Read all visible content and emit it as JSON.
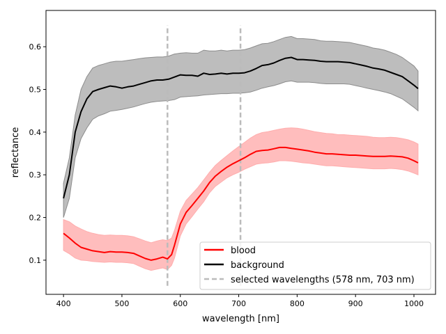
{
  "chart_data": {
    "type": "line",
    "title": "",
    "xlabel": "wavelength [nm]",
    "ylabel": "reflectance",
    "xlim": [
      370,
      1037
    ],
    "ylim": [
      0.02,
      0.685
    ],
    "xticks": [
      400,
      500,
      600,
      700,
      800,
      900,
      1000
    ],
    "yticks": [
      0.1,
      0.2,
      0.3,
      0.4,
      0.5,
      0.6
    ],
    "grid": false,
    "legend_position": "lower-right",
    "series": [
      {
        "name": "blood",
        "color": "#ff0000",
        "band_color": "#ffbdbd",
        "x": [
          400,
          410,
          420,
          430,
          440,
          450,
          460,
          470,
          480,
          490,
          500,
          510,
          520,
          530,
          540,
          550,
          560,
          570,
          578,
          585,
          590,
          600,
          610,
          620,
          630,
          640,
          650,
          660,
          670,
          680,
          690,
          700,
          710,
          720,
          730,
          740,
          750,
          760,
          770,
          780,
          790,
          800,
          810,
          820,
          830,
          840,
          850,
          860,
          870,
          880,
          890,
          900,
          910,
          920,
          930,
          940,
          950,
          960,
          970,
          980,
          990,
          1000,
          1007
        ],
        "mean": [
          0.163,
          0.152,
          0.14,
          0.13,
          0.126,
          0.122,
          0.12,
          0.118,
          0.12,
          0.119,
          0.119,
          0.118,
          0.116,
          0.11,
          0.104,
          0.1,
          0.103,
          0.107,
          0.103,
          0.113,
          0.135,
          0.185,
          0.212,
          0.228,
          0.245,
          0.262,
          0.282,
          0.297,
          0.308,
          0.318,
          0.326,
          0.333,
          0.34,
          0.348,
          0.355,
          0.357,
          0.358,
          0.361,
          0.364,
          0.364,
          0.362,
          0.36,
          0.358,
          0.356,
          0.353,
          0.351,
          0.349,
          0.349,
          0.348,
          0.347,
          0.346,
          0.346,
          0.345,
          0.344,
          0.343,
          0.343,
          0.343,
          0.344,
          0.343,
          0.342,
          0.339,
          0.333,
          0.328
        ],
        "upper": [
          0.195,
          0.19,
          0.18,
          0.173,
          0.167,
          0.163,
          0.16,
          0.158,
          0.159,
          0.158,
          0.158,
          0.157,
          0.155,
          0.15,
          0.145,
          0.141,
          0.145,
          0.148,
          0.146,
          0.152,
          0.17,
          0.215,
          0.24,
          0.255,
          0.27,
          0.288,
          0.306,
          0.322,
          0.334,
          0.345,
          0.356,
          0.366,
          0.376,
          0.386,
          0.394,
          0.399,
          0.401,
          0.404,
          0.407,
          0.409,
          0.41,
          0.409,
          0.407,
          0.404,
          0.401,
          0.399,
          0.397,
          0.396,
          0.394,
          0.394,
          0.393,
          0.392,
          0.391,
          0.39,
          0.388,
          0.387,
          0.387,
          0.388,
          0.387,
          0.385,
          0.382,
          0.377,
          0.372
        ],
        "lower": [
          0.123,
          0.115,
          0.105,
          0.1,
          0.099,
          0.097,
          0.096,
          0.095,
          0.096,
          0.095,
          0.095,
          0.094,
          0.092,
          0.086,
          0.08,
          0.076,
          0.079,
          0.082,
          0.078,
          0.088,
          0.105,
          0.157,
          0.185,
          0.202,
          0.22,
          0.237,
          0.258,
          0.273,
          0.283,
          0.293,
          0.3,
          0.306,
          0.313,
          0.319,
          0.325,
          0.327,
          0.328,
          0.33,
          0.333,
          0.333,
          0.332,
          0.33,
          0.328,
          0.327,
          0.325,
          0.323,
          0.321,
          0.321,
          0.32,
          0.319,
          0.318,
          0.317,
          0.316,
          0.315,
          0.314,
          0.314,
          0.314,
          0.315,
          0.314,
          0.312,
          0.309,
          0.304,
          0.3
        ]
      },
      {
        "name": "background",
        "color": "#000000",
        "band_color": "#bdbdbd",
        "x": [
          400,
          410,
          420,
          430,
          440,
          450,
          460,
          470,
          480,
          490,
          500,
          510,
          520,
          530,
          540,
          550,
          560,
          570,
          580,
          590,
          600,
          610,
          620,
          630,
          640,
          650,
          660,
          670,
          680,
          690,
          700,
          710,
          720,
          730,
          740,
          750,
          760,
          770,
          780,
          790,
          800,
          810,
          820,
          830,
          840,
          850,
          860,
          870,
          880,
          890,
          900,
          910,
          920,
          930,
          940,
          950,
          960,
          970,
          980,
          990,
          1000,
          1007
        ],
        "mean": [
          0.245,
          0.3,
          0.4,
          0.448,
          0.478,
          0.495,
          0.5,
          0.504,
          0.508,
          0.506,
          0.503,
          0.506,
          0.508,
          0.512,
          0.516,
          0.52,
          0.522,
          0.522,
          0.524,
          0.529,
          0.534,
          0.533,
          0.533,
          0.531,
          0.538,
          0.535,
          0.536,
          0.538,
          0.536,
          0.538,
          0.538,
          0.539,
          0.543,
          0.549,
          0.556,
          0.558,
          0.562,
          0.568,
          0.573,
          0.575,
          0.57,
          0.57,
          0.569,
          0.568,
          0.566,
          0.565,
          0.565,
          0.565,
          0.564,
          0.563,
          0.56,
          0.557,
          0.554,
          0.55,
          0.548,
          0.545,
          0.54,
          0.535,
          0.53,
          0.52,
          0.51,
          0.502
        ],
        "upper": [
          0.28,
          0.34,
          0.44,
          0.5,
          0.53,
          0.55,
          0.556,
          0.56,
          0.564,
          0.566,
          0.566,
          0.568,
          0.57,
          0.572,
          0.574,
          0.575,
          0.576,
          0.576,
          0.578,
          0.583,
          0.585,
          0.586,
          0.585,
          0.585,
          0.592,
          0.59,
          0.59,
          0.592,
          0.59,
          0.592,
          0.592,
          0.593,
          0.597,
          0.602,
          0.607,
          0.608,
          0.612,
          0.617,
          0.622,
          0.624,
          0.619,
          0.619,
          0.618,
          0.617,
          0.614,
          0.613,
          0.613,
          0.612,
          0.611,
          0.61,
          0.607,
          0.604,
          0.601,
          0.597,
          0.595,
          0.592,
          0.587,
          0.582,
          0.575,
          0.565,
          0.555,
          0.543
        ],
        "lower": [
          0.2,
          0.245,
          0.34,
          0.385,
          0.41,
          0.43,
          0.438,
          0.443,
          0.449,
          0.451,
          0.453,
          0.456,
          0.459,
          0.463,
          0.467,
          0.47,
          0.472,
          0.473,
          0.474,
          0.476,
          0.482,
          0.483,
          0.484,
          0.485,
          0.487,
          0.488,
          0.489,
          0.49,
          0.49,
          0.491,
          0.491,
          0.492,
          0.494,
          0.498,
          0.503,
          0.506,
          0.509,
          0.513,
          0.518,
          0.52,
          0.517,
          0.517,
          0.517,
          0.516,
          0.514,
          0.513,
          0.513,
          0.513,
          0.513,
          0.512,
          0.509,
          0.506,
          0.503,
          0.5,
          0.497,
          0.494,
          0.49,
          0.484,
          0.478,
          0.468,
          0.458,
          0.45
        ]
      }
    ],
    "vlines": {
      "name": "selected wavelengths (578 nm, 703 nm)",
      "x": [
        578,
        703
      ],
      "y_range": [
        0.04,
        0.65
      ],
      "color": "#bbbbbb",
      "style": "dashed"
    },
    "legend_entries": [
      "blood",
      "background",
      "selected wavelengths (578 nm, 703 nm)"
    ]
  }
}
